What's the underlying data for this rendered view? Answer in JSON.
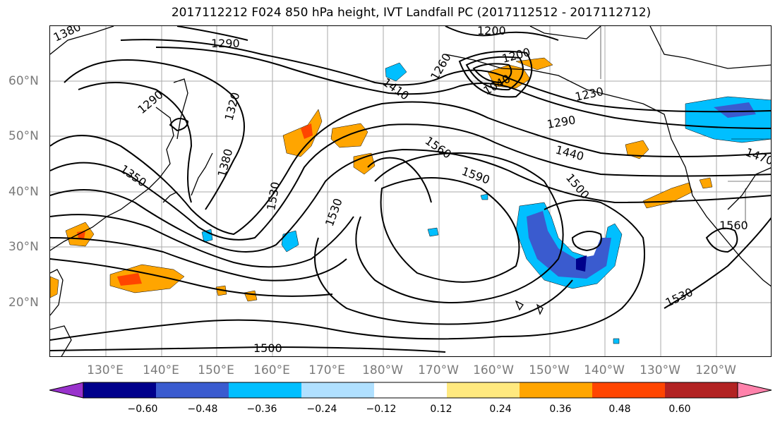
{
  "title": "2017112212 F024 850 hPa height, IVT Landfall PC (2017112512 - 2017112712)",
  "lat_labels": [
    "60°N",
    "50°N",
    "40°N",
    "30°N",
    "20°N"
  ],
  "lon_labels": [
    "130°E",
    "140°E",
    "150°E",
    "160°E",
    "170°E",
    "180°W",
    "170°W",
    "160°W",
    "150°W",
    "140°W",
    "130°W",
    "120°W"
  ],
  "contour_labels": [
    "1380",
    "1290",
    "1200",
    "1260",
    "1200",
    "1410",
    "1040",
    "1230",
    "1290",
    "1320",
    "1290",
    "1350",
    "1380",
    "1560",
    "1590",
    "1440",
    "1500",
    "1470",
    "1530",
    "1530",
    "1500",
    "1560",
    "1530"
  ],
  "colorbar": {
    "ticks": [
      "−0.60",
      "−0.48",
      "−0.36",
      "−0.24",
      "−0.12",
      "0.12",
      "0.24",
      "0.36",
      "0.48",
      "0.60"
    ],
    "colors": [
      "#9932cc",
      "#00008b",
      "#3a5bcf",
      "#00bfff",
      "#b0e0ff",
      "#ffffff",
      "#ffe97f",
      "#ffa500",
      "#ff4500",
      "#b22222",
      "#ff82ab"
    ]
  }
}
